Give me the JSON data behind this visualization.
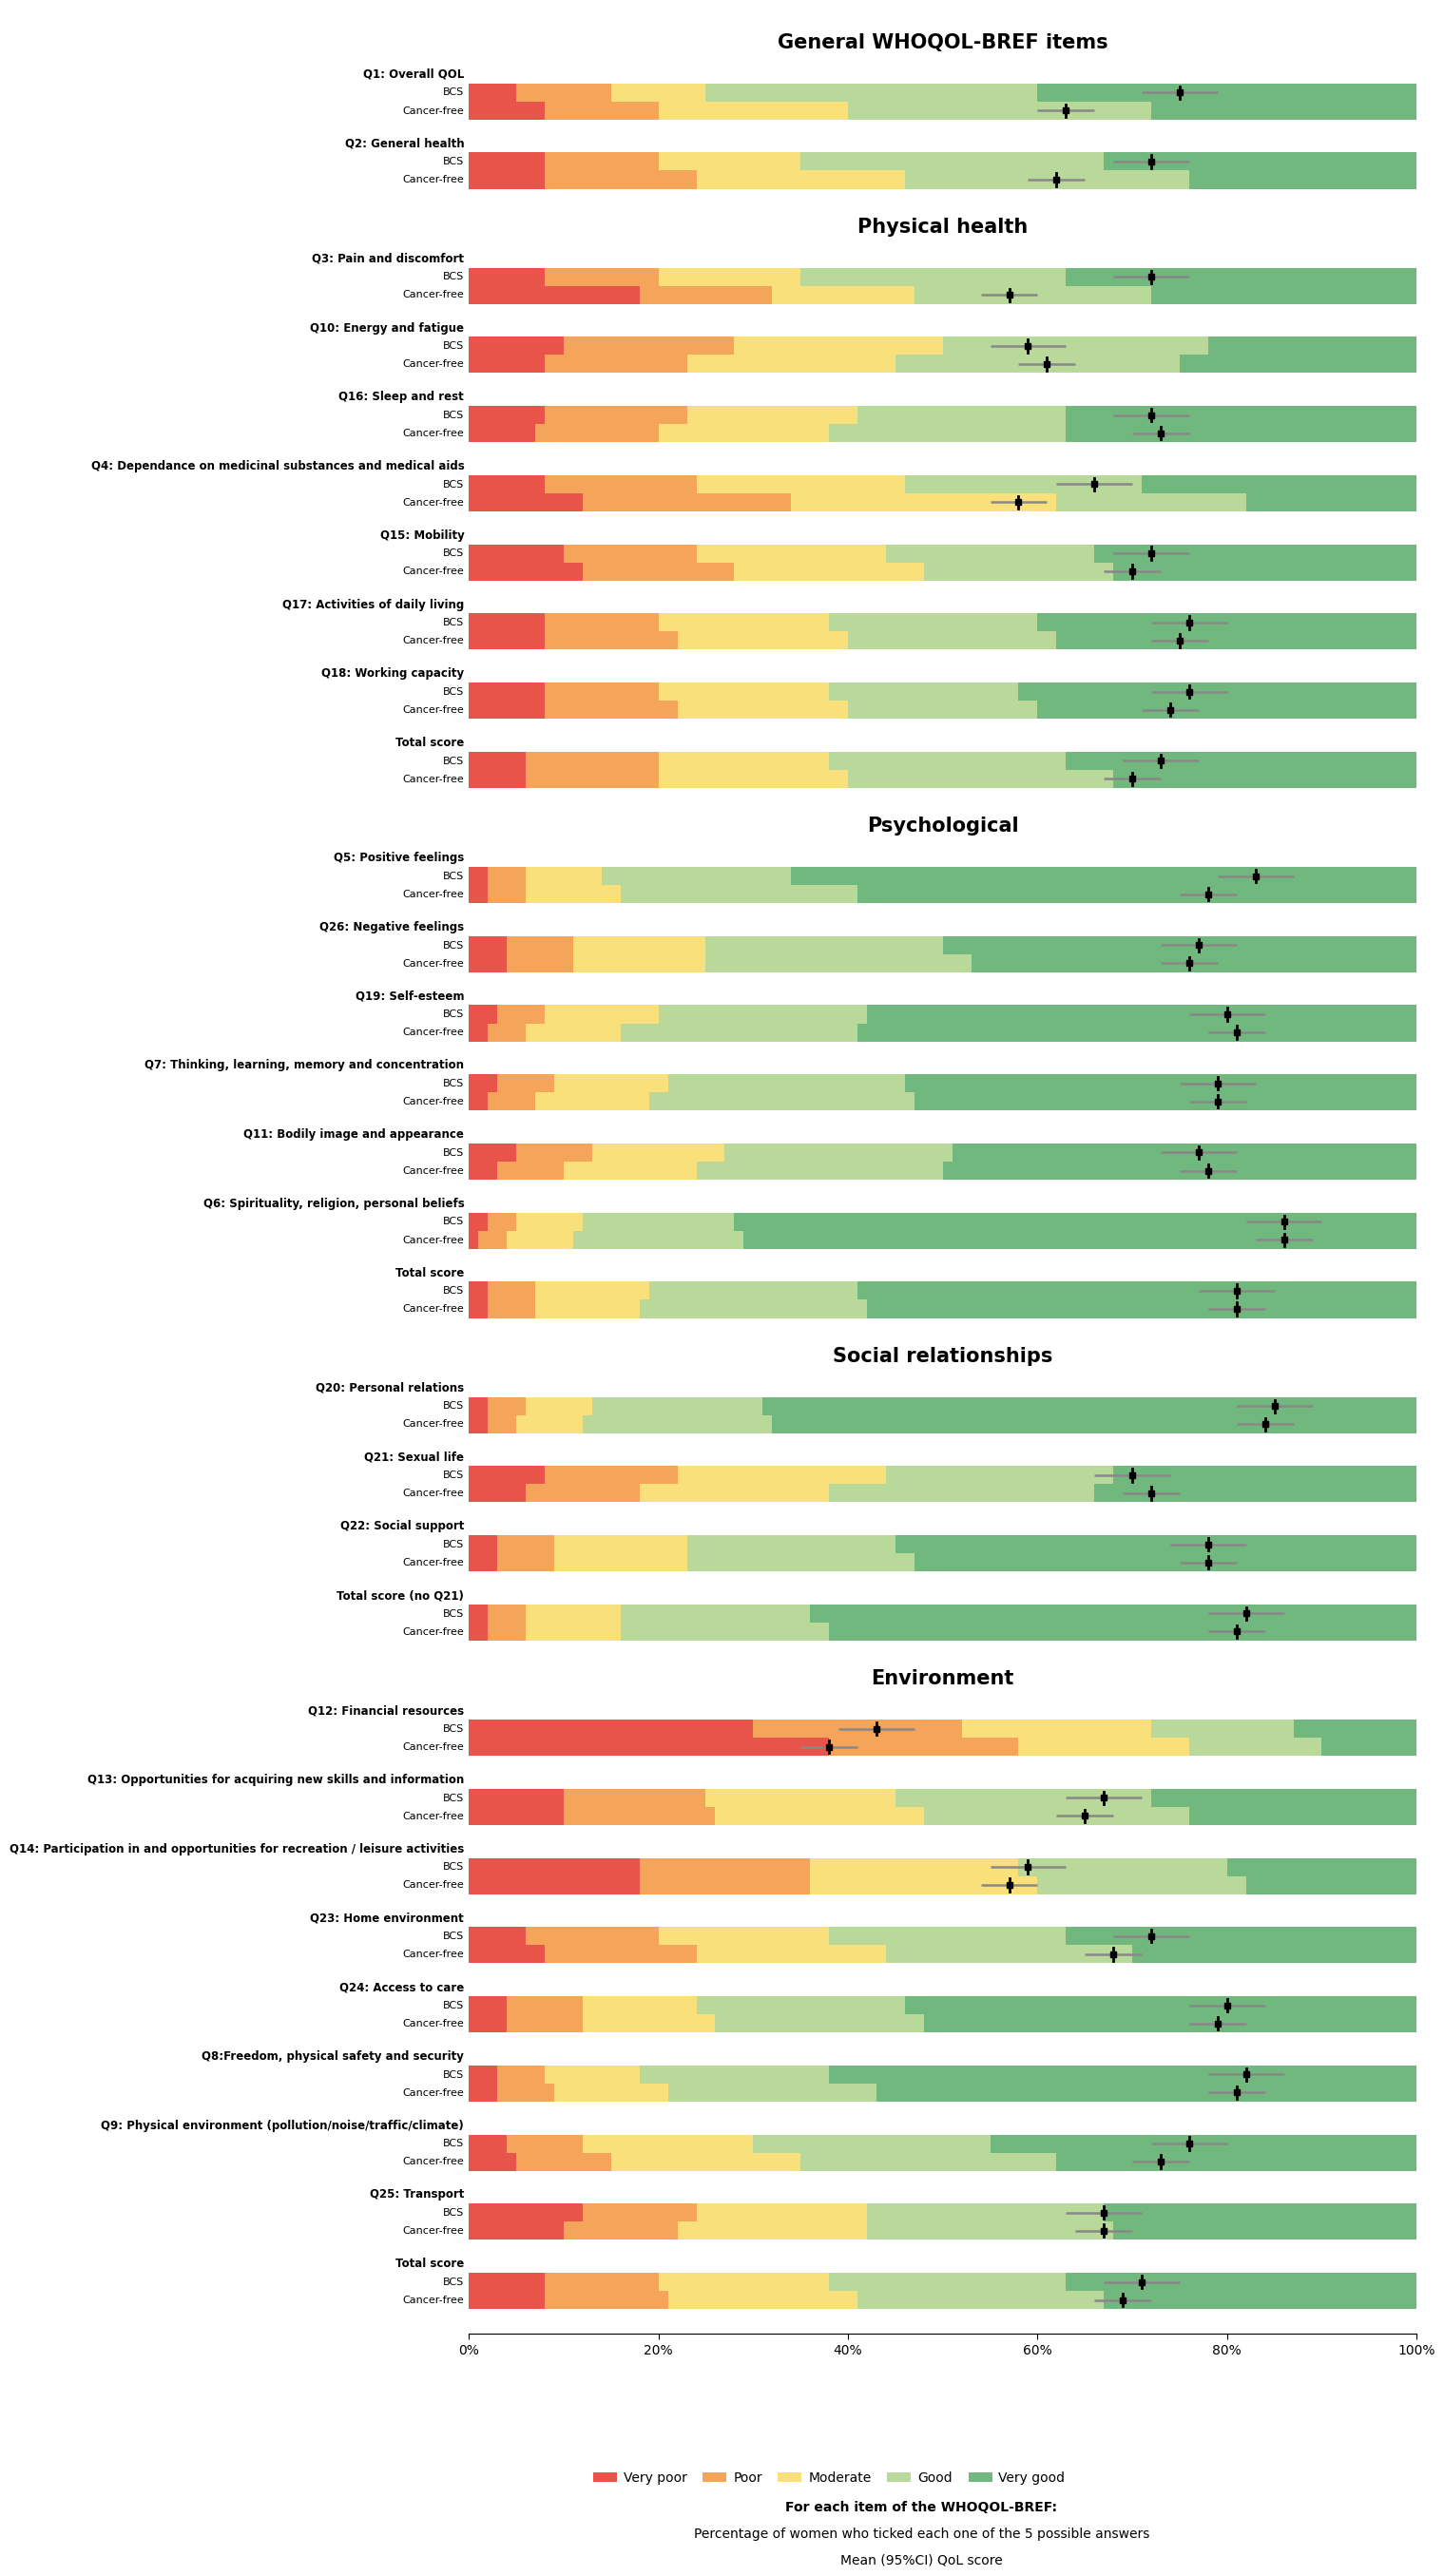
{
  "sections": [
    {
      "title": "General WHOQOL-BREF items",
      "items": [
        {
          "label": "Q1: Overall QOL",
          "bcs": [
            5,
            10,
            10,
            35,
            40
          ],
          "cancer_free": [
            8,
            12,
            20,
            32,
            28
          ],
          "mean_bcs": 75,
          "ci_bcs": [
            71,
            79
          ],
          "mean_cf": 63,
          "ci_cf": [
            60,
            66
          ]
        },
        {
          "label": "Q2: General health",
          "bcs": [
            8,
            12,
            15,
            32,
            33
          ],
          "cancer_free": [
            8,
            16,
            22,
            30,
            24
          ],
          "mean_bcs": 72,
          "ci_bcs": [
            68,
            76
          ],
          "mean_cf": 62,
          "ci_cf": [
            59,
            65
          ]
        }
      ]
    },
    {
      "title": "Physical health",
      "items": [
        {
          "label": "Q3: Pain and discomfort",
          "bcs": [
            8,
            12,
            15,
            28,
            37
          ],
          "cancer_free": [
            18,
            14,
            15,
            25,
            28
          ],
          "mean_bcs": 72,
          "ci_bcs": [
            68,
            76
          ],
          "mean_cf": 57,
          "ci_cf": [
            54,
            60
          ]
        },
        {
          "label": "Q10: Energy and fatigue",
          "bcs": [
            10,
            18,
            22,
            28,
            22
          ],
          "cancer_free": [
            8,
            15,
            22,
            30,
            25
          ],
          "mean_bcs": 59,
          "ci_bcs": [
            55,
            63
          ],
          "mean_cf": 61,
          "ci_cf": [
            58,
            64
          ]
        },
        {
          "label": "Q16: Sleep and rest",
          "bcs": [
            8,
            15,
            18,
            22,
            37
          ],
          "cancer_free": [
            7,
            13,
            18,
            25,
            37
          ],
          "mean_bcs": 72,
          "ci_bcs": [
            68,
            76
          ],
          "mean_cf": 73,
          "ci_cf": [
            70,
            76
          ]
        },
        {
          "label": "Q4: Dependance on medicinal substances and medical aids",
          "bcs": [
            8,
            16,
            22,
            25,
            29
          ],
          "cancer_free": [
            12,
            22,
            28,
            20,
            18
          ],
          "mean_bcs": 66,
          "ci_bcs": [
            62,
            70
          ],
          "mean_cf": 58,
          "ci_cf": [
            55,
            61
          ]
        },
        {
          "label": "Q15: Mobility",
          "bcs": [
            10,
            14,
            20,
            22,
            34
          ],
          "cancer_free": [
            12,
            16,
            20,
            20,
            32
          ],
          "mean_bcs": 72,
          "ci_bcs": [
            68,
            76
          ],
          "mean_cf": 70,
          "ci_cf": [
            67,
            73
          ]
        },
        {
          "label": "Q17: Activities of daily living",
          "bcs": [
            8,
            12,
            18,
            22,
            40
          ],
          "cancer_free": [
            8,
            14,
            18,
            22,
            38
          ],
          "mean_bcs": 76,
          "ci_bcs": [
            72,
            80
          ],
          "mean_cf": 75,
          "ci_cf": [
            72,
            78
          ]
        },
        {
          "label": "Q18: Working capacity",
          "bcs": [
            8,
            12,
            18,
            20,
            42
          ],
          "cancer_free": [
            8,
            14,
            18,
            20,
            40
          ],
          "mean_bcs": 76,
          "ci_bcs": [
            72,
            80
          ],
          "mean_cf": 74,
          "ci_cf": [
            71,
            77
          ]
        },
        {
          "label": "Total score",
          "bcs": [
            6,
            14,
            18,
            25,
            37
          ],
          "cancer_free": [
            6,
            14,
            20,
            28,
            32
          ],
          "mean_bcs": 73,
          "ci_bcs": [
            69,
            77
          ],
          "mean_cf": 70,
          "ci_cf": [
            67,
            73
          ]
        }
      ]
    },
    {
      "title": "Psychological",
      "items": [
        {
          "label": "Q5: Positive feelings",
          "bcs": [
            2,
            4,
            8,
            20,
            66
          ],
          "cancer_free": [
            2,
            4,
            10,
            25,
            59
          ],
          "mean_bcs": 83,
          "ci_bcs": [
            79,
            87
          ],
          "mean_cf": 78,
          "ci_cf": [
            75,
            81
          ]
        },
        {
          "label": "Q26: Negative feelings",
          "bcs": [
            4,
            7,
            14,
            25,
            50
          ],
          "cancer_free": [
            4,
            7,
            14,
            28,
            47
          ],
          "mean_bcs": 77,
          "ci_bcs": [
            73,
            81
          ],
          "mean_cf": 76,
          "ci_cf": [
            73,
            79
          ]
        },
        {
          "label": "Q19: Self-esteem",
          "bcs": [
            3,
            5,
            12,
            22,
            58
          ],
          "cancer_free": [
            2,
            4,
            10,
            25,
            59
          ],
          "mean_bcs": 80,
          "ci_bcs": [
            76,
            84
          ],
          "mean_cf": 81,
          "ci_cf": [
            78,
            84
          ]
        },
        {
          "label": "Q7: Thinking, learning, memory and concentration",
          "bcs": [
            3,
            6,
            12,
            25,
            54
          ],
          "cancer_free": [
            2,
            5,
            12,
            28,
            53
          ],
          "mean_bcs": 79,
          "ci_bcs": [
            75,
            83
          ],
          "mean_cf": 79,
          "ci_cf": [
            76,
            82
          ]
        },
        {
          "label": "Q11: Bodily image and appearance",
          "bcs": [
            5,
            8,
            14,
            24,
            49
          ],
          "cancer_free": [
            3,
            7,
            14,
            26,
            50
          ],
          "mean_bcs": 77,
          "ci_bcs": [
            73,
            81
          ],
          "mean_cf": 78,
          "ci_cf": [
            75,
            81
          ]
        },
        {
          "label": "Q6: Spirituality, religion, personal beliefs",
          "bcs": [
            2,
            3,
            7,
            16,
            72
          ],
          "cancer_free": [
            1,
            3,
            7,
            18,
            71
          ],
          "mean_bcs": 86,
          "ci_bcs": [
            82,
            90
          ],
          "mean_cf": 86,
          "ci_cf": [
            83,
            89
          ]
        },
        {
          "label": "Total score",
          "bcs": [
            2,
            5,
            12,
            22,
            59
          ],
          "cancer_free": [
            2,
            5,
            11,
            24,
            58
          ],
          "mean_bcs": 81,
          "ci_bcs": [
            77,
            85
          ],
          "mean_cf": 81,
          "ci_cf": [
            78,
            84
          ]
        }
      ]
    },
    {
      "title": "Social relationships",
      "items": [
        {
          "label": "Q20: Personal relations",
          "bcs": [
            2,
            4,
            7,
            18,
            69
          ],
          "cancer_free": [
            2,
            3,
            7,
            20,
            68
          ],
          "mean_bcs": 85,
          "ci_bcs": [
            81,
            89
          ],
          "mean_cf": 84,
          "ci_cf": [
            81,
            87
          ]
        },
        {
          "label": "Q21: Sexual life",
          "bcs": [
            8,
            14,
            22,
            24,
            32
          ],
          "cancer_free": [
            6,
            12,
            20,
            28,
            34
          ],
          "mean_bcs": 70,
          "ci_bcs": [
            66,
            74
          ],
          "mean_cf": 72,
          "ci_cf": [
            69,
            75
          ]
        },
        {
          "label": "Q22: Social support",
          "bcs": [
            3,
            6,
            14,
            22,
            55
          ],
          "cancer_free": [
            3,
            6,
            14,
            24,
            53
          ],
          "mean_bcs": 78,
          "ci_bcs": [
            74,
            82
          ],
          "mean_cf": 78,
          "ci_cf": [
            75,
            81
          ]
        },
        {
          "label": "Total score (no Q21)",
          "bcs": [
            2,
            4,
            10,
            20,
            64
          ],
          "cancer_free": [
            2,
            4,
            10,
            22,
            62
          ],
          "mean_bcs": 82,
          "ci_bcs": [
            78,
            86
          ],
          "mean_cf": 81,
          "ci_cf": [
            78,
            84
          ]
        }
      ]
    },
    {
      "title": "Environment",
      "items": [
        {
          "label": "Q12: Financial resources",
          "bcs": [
            30,
            22,
            20,
            15,
            13
          ],
          "cancer_free": [
            38,
            20,
            18,
            14,
            10
          ],
          "mean_bcs": 43,
          "ci_bcs": [
            39,
            47
          ],
          "mean_cf": 38,
          "ci_cf": [
            35,
            41
          ]
        },
        {
          "label": "Q13: Opportunities for acquiring new skills and information",
          "bcs": [
            10,
            15,
            20,
            27,
            28
          ],
          "cancer_free": [
            10,
            16,
            22,
            28,
            24
          ],
          "mean_bcs": 67,
          "ci_bcs": [
            63,
            71
          ],
          "mean_cf": 65,
          "ci_cf": [
            62,
            68
          ]
        },
        {
          "label": "Q14: Participation in and opportunities for recreation / leisure activities",
          "bcs": [
            18,
            18,
            22,
            22,
            20
          ],
          "cancer_free": [
            18,
            18,
            24,
            22,
            18
          ],
          "mean_bcs": 59,
          "ci_bcs": [
            55,
            63
          ],
          "mean_cf": 57,
          "ci_cf": [
            54,
            60
          ]
        },
        {
          "label": "Q23: Home environment",
          "bcs": [
            6,
            14,
            18,
            25,
            37
          ],
          "cancer_free": [
            8,
            16,
            20,
            26,
            30
          ],
          "mean_bcs": 72,
          "ci_bcs": [
            68,
            76
          ],
          "mean_cf": 68,
          "ci_cf": [
            65,
            71
          ]
        },
        {
          "label": "Q24: Access to care",
          "bcs": [
            4,
            8,
            12,
            22,
            54
          ],
          "cancer_free": [
            4,
            8,
            14,
            22,
            52
          ],
          "mean_bcs": 80,
          "ci_bcs": [
            76,
            84
          ],
          "mean_cf": 79,
          "ci_cf": [
            76,
            82
          ]
        },
        {
          "label": "Q8:Freedom, physical safety and security",
          "bcs": [
            3,
            5,
            10,
            20,
            62
          ],
          "cancer_free": [
            3,
            6,
            12,
            22,
            57
          ],
          "mean_bcs": 82,
          "ci_bcs": [
            78,
            86
          ],
          "mean_cf": 81,
          "ci_cf": [
            78,
            84
          ]
        },
        {
          "label": "Q9: Physical environment (pollution/noise/traffic/climate)",
          "bcs": [
            4,
            8,
            18,
            25,
            45
          ],
          "cancer_free": [
            5,
            10,
            20,
            27,
            38
          ],
          "mean_bcs": 76,
          "ci_bcs": [
            72,
            80
          ],
          "mean_cf": 73,
          "ci_cf": [
            70,
            76
          ]
        },
        {
          "label": "Q25: Transport",
          "bcs": [
            12,
            12,
            18,
            25,
            33
          ],
          "cancer_free": [
            10,
            12,
            20,
            26,
            32
          ],
          "mean_bcs": 67,
          "ci_bcs": [
            63,
            71
          ],
          "mean_cf": 67,
          "ci_cf": [
            64,
            70
          ]
        },
        {
          "label": "Total score",
          "bcs": [
            8,
            12,
            18,
            25,
            37
          ],
          "cancer_free": [
            8,
            13,
            20,
            26,
            33
          ],
          "mean_bcs": 71,
          "ci_bcs": [
            67,
            75
          ],
          "mean_cf": 69,
          "ci_cf": [
            66,
            72
          ]
        }
      ]
    }
  ],
  "colors": {
    "very_poor": "#E8534A",
    "poor": "#F4A55A",
    "moderate": "#F9E07A",
    "good": "#B8D99A",
    "very_good": "#71B87E"
  },
  "legend_labels": [
    "Very poor",
    "Poor",
    "Moderate",
    "Good",
    "Very good"
  ],
  "xlabel_line1": "For each item of the WHOQOL-BREF:",
  "xlabel_line2": "Percentage of women who ticked each one of the 5 possible answers",
  "xlabel_line3": "Mean (95%CI) QoL score",
  "xtick_labels": [
    "0%",
    "20%",
    "40%",
    "60%",
    "80%",
    "100%"
  ],
  "xtick_vals": [
    0,
    20,
    40,
    60,
    80,
    100
  ]
}
